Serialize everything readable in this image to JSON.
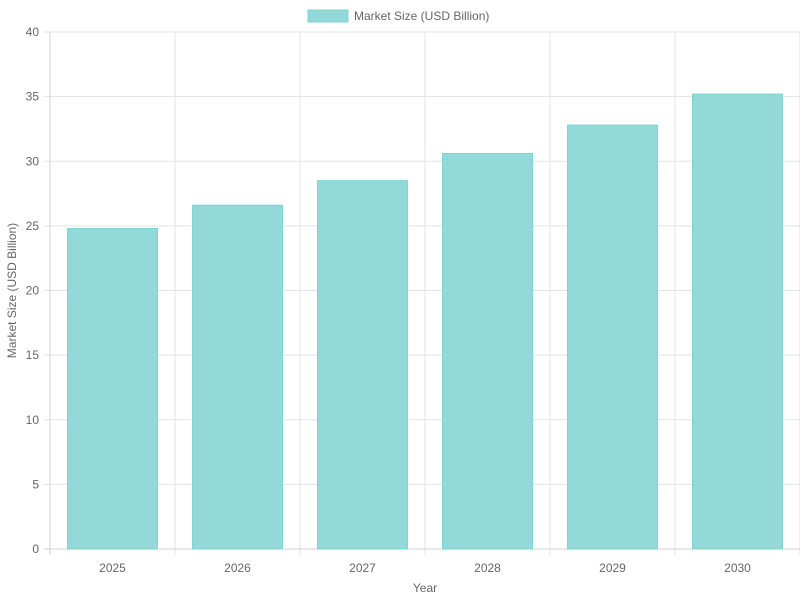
{
  "chart_data": {
    "type": "bar",
    "categories": [
      "2025",
      "2026",
      "2027",
      "2028",
      "2029",
      "2030"
    ],
    "series": [
      {
        "name": "Market Size (USD Billion)",
        "values": [
          24.8,
          26.6,
          28.5,
          30.6,
          32.8,
          35.2
        ],
        "color": "#94d9d9",
        "border_color": "#7fd3d3"
      }
    ],
    "xlabel": "Year",
    "ylabel": "Market Size (USD Billion)",
    "ylim": [
      0,
      40
    ],
    "yticks": [
      "0",
      "5",
      "10",
      "15",
      "20",
      "25",
      "30",
      "35",
      "40"
    ],
    "grid": true,
    "legend_position": "top"
  }
}
